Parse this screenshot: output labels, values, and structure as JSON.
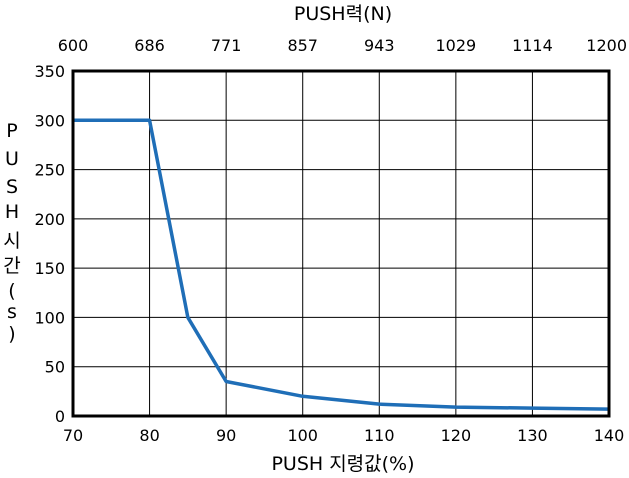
{
  "chart_data": {
    "type": "line",
    "top_axis": {
      "label": "PUSH력(N)",
      "ticks": [
        "600",
        "686",
        "771",
        "857",
        "943",
        "1029",
        "1114",
        "1200"
      ]
    },
    "xlabel": "PUSH 지령값(%)",
    "ylabel_chars": [
      "P",
      "U",
      "S",
      "H",
      "시",
      "간",
      "(",
      "s",
      ")"
    ],
    "x_ticks": [
      70,
      80,
      90,
      100,
      110,
      120,
      130,
      140
    ],
    "y_ticks": [
      0,
      50,
      100,
      150,
      200,
      250,
      300,
      350
    ],
    "xlim": [
      70,
      140
    ],
    "ylim": [
      0,
      350
    ],
    "grid": true,
    "series": [
      {
        "color": "#1f6eb7",
        "x": [
          70,
          80,
          85,
          90,
          100,
          110,
          120,
          130,
          140
        ],
        "y": [
          300,
          300,
          100,
          35,
          20,
          12,
          9,
          8,
          7
        ]
      }
    ]
  }
}
